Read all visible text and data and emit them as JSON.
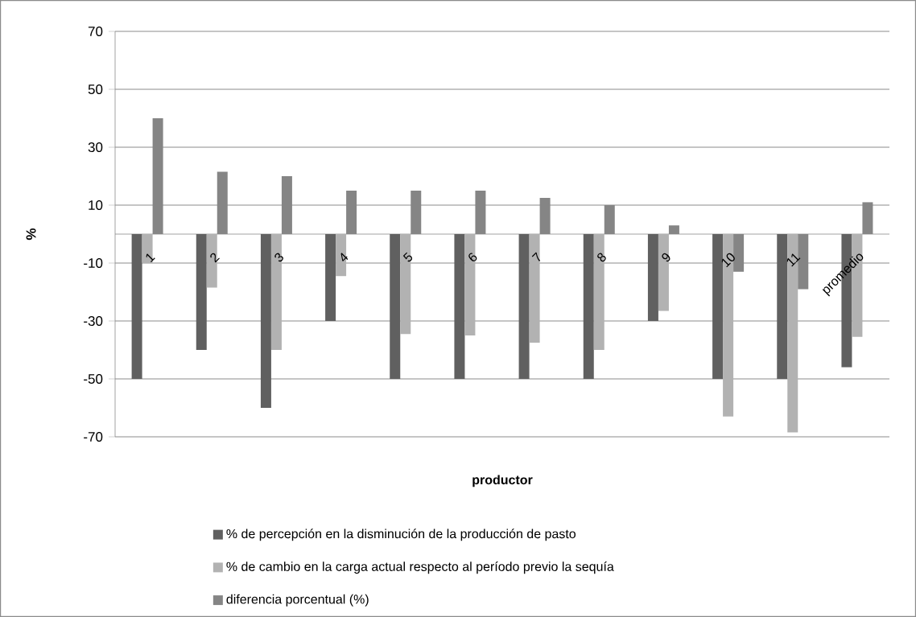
{
  "chart_data": {
    "type": "bar",
    "xlabel": "productor",
    "ylabel": "%",
    "categories": [
      "1",
      "2",
      "3",
      "4",
      "5",
      "6",
      "7",
      "8",
      "9",
      "10",
      "11",
      "promedio"
    ],
    "series": [
      {
        "name": "% de percepción en la disminución de la producción de pasto",
        "color": "#606060",
        "values": [
          -50,
          -40,
          -60,
          -30,
          -50,
          -50,
          -50,
          -50,
          -30,
          -50,
          -50,
          -46
        ]
      },
      {
        "name": "% de cambio en la carga actual respecto al período previo la sequía",
        "color": "#b2b2b2",
        "values": [
          -10,
          -18.5,
          -40,
          -14.5,
          -34.5,
          -35,
          -37.5,
          -40,
          -26.5,
          -63,
          -68.5,
          -35.5
        ]
      },
      {
        "name": "diferencia porcentual (%)",
        "color": "#858585",
        "values": [
          40,
          21.5,
          20,
          15,
          15,
          15,
          12.5,
          10,
          3,
          -13,
          -19,
          11
        ]
      }
    ],
    "ylim": [
      -70,
      70
    ],
    "yticks": [
      70,
      50,
      30,
      10,
      -10,
      -30,
      -50,
      -70
    ],
    "grid": "y",
    "legend": "bottom"
  }
}
